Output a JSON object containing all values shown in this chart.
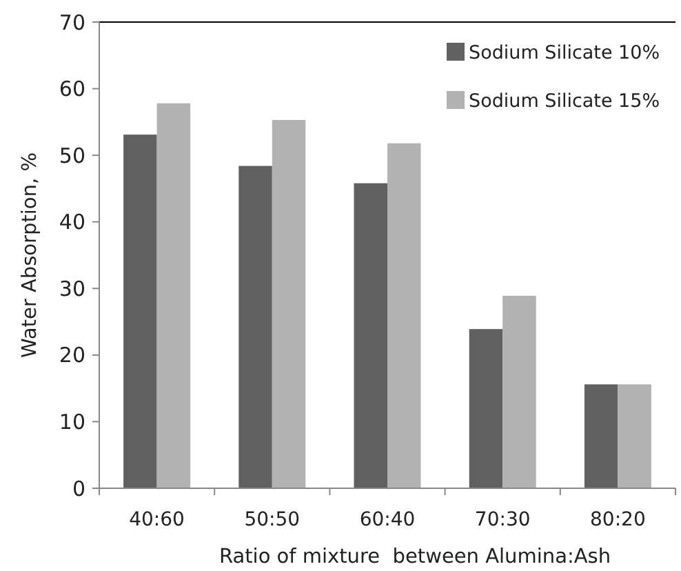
{
  "chart_data": {
    "type": "bar",
    "xlabel": "Ratio of mixture  between Alumina:Ash",
    "ylabel": "Water Absorption, %",
    "categories": [
      "40:60",
      "50:50",
      "60:40",
      "70:30",
      "80:20"
    ],
    "series": [
      {
        "name": "Sodium Silicate 10%",
        "color": "#606060",
        "values": [
          53.1,
          48.4,
          45.8,
          23.9,
          15.6
        ]
      },
      {
        "name": "Sodium Silicate 15%",
        "color": "#b2b2b2",
        "values": [
          57.8,
          55.3,
          51.8,
          28.9,
          15.6
        ]
      }
    ],
    "ylim": [
      0,
      70
    ],
    "yticks": [
      0,
      10,
      20,
      30,
      40,
      50,
      60,
      70
    ],
    "grid": false,
    "legend": "top right"
  }
}
